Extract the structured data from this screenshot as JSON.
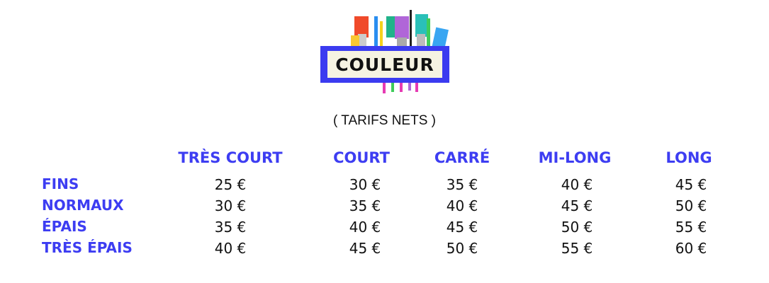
{
  "logo": {
    "text": "COULEUR",
    "colors": {
      "frame": "#3b3bf0",
      "panel": "#f6f3e2"
    }
  },
  "subtitle": "( TARIFS NETS )",
  "table": {
    "columns": [
      "TRÈS COURT",
      "COURT",
      "CARRÉ",
      "MI-LONG",
      "LONG"
    ],
    "rows": [
      {
        "label": "FINS",
        "values": [
          "25 €",
          "30 €",
          "35 €",
          "40 €",
          "45 €"
        ]
      },
      {
        "label": "NORMAUX",
        "values": [
          "30 €",
          "35 €",
          "40 €",
          "45 €",
          "50 €"
        ]
      },
      {
        "label": "ÉPAIS",
        "values": [
          "35 €",
          "40 €",
          "45 €",
          "50 €",
          "55 €"
        ]
      },
      {
        "label": "TRÈS ÉPAIS",
        "values": [
          "40 €",
          "45 €",
          "50 €",
          "55 €",
          "60 €"
        ]
      }
    ]
  },
  "accent_color": "#3d3df2"
}
